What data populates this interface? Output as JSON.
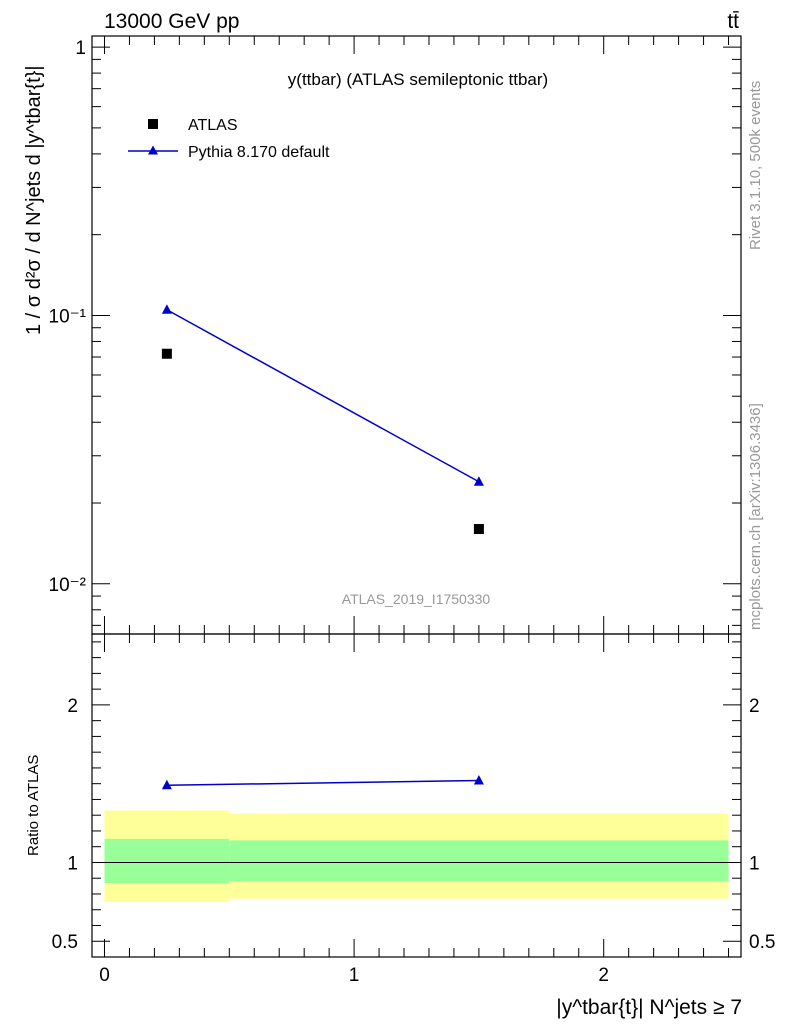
{
  "header": {
    "left": "13000 GeV pp",
    "right": "tt̄"
  },
  "side_text": {
    "rivet": "Rivet 3.1.10,  500k events",
    "mcplots": "mcplots.cern.ch [arXiv:1306.3436]"
  },
  "colors": {
    "data": "#000000",
    "mc": "#0000cc",
    "band_inner": "#99ff99",
    "band_outer": "#ffff99",
    "watermark": "#999999"
  },
  "chart_data": [
    {
      "type": "scatter",
      "panel": "main",
      "title": "y(ttbar) (ATLAS semileptonic ttbar)",
      "watermark": "ATLAS_2019_I1750330",
      "ylabel": "1 / σ d²σ / d N^jets d |y^tbar{t}|",
      "yscale": "log",
      "ylim": [
        0.0065,
        1.1
      ],
      "xlim": [
        -0.05,
        2.55
      ],
      "y_ticks": [
        {
          "value": 1,
          "label": "1"
        },
        {
          "value": 0.1,
          "label": "10⁻¹"
        },
        {
          "value": 0.01,
          "label": "10⁻²"
        }
      ],
      "legend": {
        "position": "top-left",
        "entries": [
          {
            "name": "ATLAS",
            "marker": "square"
          },
          {
            "name": "Pythia 8.170 default",
            "marker": "triangle"
          }
        ]
      },
      "series": [
        {
          "name": "ATLAS",
          "x": [
            0.25,
            1.5
          ],
          "y": [
            0.072,
            0.016
          ]
        },
        {
          "name": "Pythia 8.170 default",
          "x": [
            0.25,
            1.5
          ],
          "y": [
            0.105,
            0.024
          ]
        }
      ]
    },
    {
      "type": "line",
      "panel": "ratio",
      "ylabel": "Ratio to ATLAS",
      "xlabel": "|y^tbar{t}| N^jets ≥ 7",
      "ylim": [
        0.4,
        2.45
      ],
      "xlim": [
        -0.05,
        2.55
      ],
      "x_ticks": [
        {
          "value": 0,
          "label": "0"
        },
        {
          "value": 1,
          "label": "1"
        },
        {
          "value": 2,
          "label": "2"
        }
      ],
      "y_ticks": [
        {
          "value": 0.5,
          "label": "0.5"
        },
        {
          "value": 1,
          "label": "1"
        },
        {
          "value": 2,
          "label": "2"
        }
      ],
      "bins": [
        {
          "x_low": 0.0,
          "x_high": 0.5,
          "inner_low": 0.87,
          "inner_high": 1.15,
          "outer_low": 0.75,
          "outer_high": 1.33
        },
        {
          "x_low": 0.5,
          "x_high": 2.5,
          "inner_low": 0.88,
          "inner_high": 1.14,
          "outer_low": 0.77,
          "outer_high": 1.31
        }
      ],
      "series": [
        {
          "name": "Pythia 8.170 default",
          "x": [
            0.25,
            1.5
          ],
          "y": [
            1.49,
            1.52
          ]
        }
      ]
    }
  ]
}
